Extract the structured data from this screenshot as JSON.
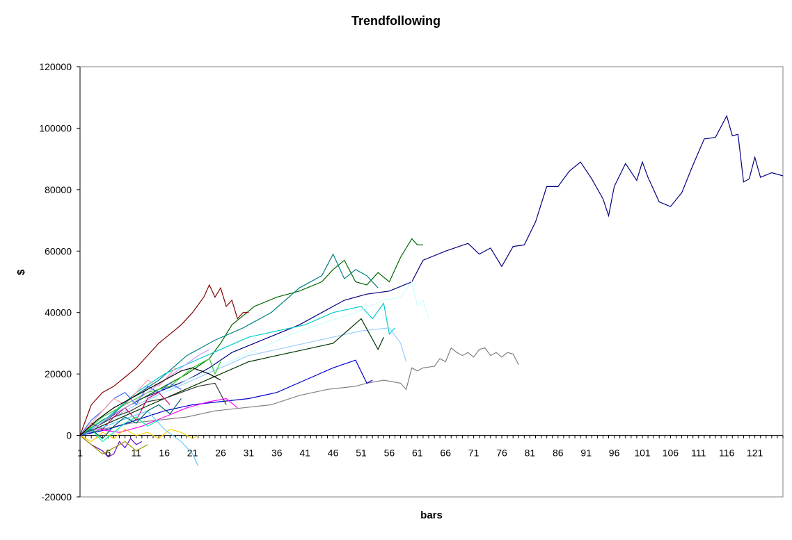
{
  "chart_data": {
    "type": "line",
    "title": "Trendfollowing",
    "xlabel": "bars",
    "ylabel": "$",
    "ylim": [
      -20000,
      120000
    ],
    "xlim": [
      1,
      126
    ],
    "yticks": [
      -20000,
      0,
      20000,
      40000,
      60000,
      80000,
      100000,
      120000
    ],
    "yticklabels": [
      "-20000",
      "0",
      "20000",
      "40000",
      "60000",
      "80000",
      "100000",
      "120000"
    ],
    "xticks": [
      1,
      6,
      11,
      16,
      21,
      26,
      31,
      36,
      41,
      46,
      51,
      56,
      61,
      66,
      71,
      76,
      81,
      86,
      91,
      96,
      101,
      106,
      111,
      116,
      121
    ],
    "xticklabels": [
      "1",
      "6",
      "11",
      "16",
      "21",
      "26",
      "31",
      "36",
      "41",
      "46",
      "51",
      "56",
      "61",
      "66",
      "71",
      "76",
      "81",
      "86",
      "91",
      "96",
      "101",
      "106",
      "111",
      "116",
      "121"
    ],
    "grid": false,
    "legend": "none",
    "series": [
      {
        "color": "#000080",
        "x": [
          1,
          4,
          8,
          12,
          16,
          20,
          24,
          28,
          32,
          36,
          40,
          44,
          48,
          52,
          56,
          60,
          62,
          66,
          70,
          72,
          74,
          76,
          78,
          80,
          82,
          84,
          86,
          88,
          90,
          92,
          94,
          95,
          96,
          98,
          100,
          101,
          102,
          104,
          106,
          108,
          110,
          112,
          114,
          116,
          117,
          118,
          119,
          120,
          121,
          122,
          124,
          126
        ],
        "values": [
          0,
          3000,
          8000,
          12000,
          15000,
          18000,
          22000,
          27000,
          30000,
          33000,
          36000,
          40000,
          44000,
          46000,
          47000,
          50000,
          57000,
          60000,
          62500,
          59000,
          61000,
          55000,
          61500,
          62000,
          69500,
          81000,
          81000,
          86000,
          89000,
          83500,
          77000,
          71500,
          81000,
          88500,
          83000,
          89000,
          84000,
          76000,
          74500,
          79000,
          88000,
          96500,
          97000,
          104000,
          97500,
          98000,
          82500,
          83500,
          90500,
          84000,
          85500,
          84500
        ]
      },
      {
        "color": "#808080",
        "x": [
          1,
          5,
          10,
          15,
          20,
          25,
          30,
          35,
          40,
          45,
          50,
          52,
          55,
          58,
          59,
          60,
          61,
          62,
          64,
          65,
          66,
          67,
          68,
          69,
          70,
          71,
          72,
          73,
          74,
          75,
          76,
          77,
          78,
          79
        ],
        "values": [
          0,
          2000,
          4000,
          5000,
          6000,
          8000,
          9000,
          10000,
          13000,
          15000,
          16000,
          17000,
          18000,
          17000,
          15000,
          22000,
          21000,
          22000,
          22500,
          25000,
          24000,
          28500,
          27000,
          26000,
          27000,
          25500,
          28000,
          28500,
          26000,
          27000,
          25500,
          27000,
          26500,
          23000
        ]
      },
      {
        "color": "#006400",
        "x": [
          1,
          5,
          10,
          15,
          20,
          24,
          26,
          28,
          32,
          36,
          40,
          44,
          46,
          48,
          50,
          52,
          54,
          56,
          58,
          60,
          61,
          62
        ],
        "values": [
          0,
          5000,
          10000,
          15000,
          20000,
          25000,
          30000,
          36000,
          42000,
          45000,
          47000,
          50000,
          54000,
          57000,
          50000,
          49000,
          53000,
          50000,
          58000,
          64000,
          62000,
          62000
        ]
      },
      {
        "color": "#008080",
        "x": [
          1,
          5,
          10,
          15,
          20,
          25,
          30,
          35,
          40,
          44,
          46,
          48,
          50,
          52,
          54
        ],
        "values": [
          0,
          4000,
          12000,
          18000,
          26000,
          31000,
          35000,
          40000,
          48000,
          52000,
          59000,
          51000,
          54000,
          52000,
          48000
        ]
      },
      {
        "color": "#800000",
        "x": [
          1,
          3,
          5,
          7,
          9,
          11,
          13,
          15,
          17,
          19,
          21,
          23,
          24,
          25,
          26,
          27,
          28,
          29,
          30,
          31
        ],
        "values": [
          0,
          10000,
          14000,
          16000,
          19000,
          22000,
          26000,
          30000,
          33000,
          36000,
          40000,
          45000,
          49000,
          45000,
          48000,
          42000,
          44000,
          38000,
          40000,
          40000
        ]
      },
      {
        "color": "#00CCCC",
        "x": [
          1,
          6,
          11,
          16,
          21,
          26,
          31,
          36,
          41,
          46,
          51,
          53,
          55,
          56,
          57
        ],
        "values": [
          0,
          6000,
          14000,
          20000,
          24000,
          28000,
          32000,
          34000,
          36000,
          40000,
          42000,
          38000,
          43000,
          33000,
          35000
        ]
      },
      {
        "color": "#99CCFF",
        "x": [
          1,
          6,
          11,
          16,
          21,
          26,
          31,
          36,
          41,
          46,
          51,
          56,
          58,
          59
        ],
        "values": [
          0,
          5000,
          10000,
          14000,
          18000,
          22000,
          26000,
          28000,
          30000,
          32000,
          34000,
          35000,
          30000,
          24000
        ]
      },
      {
        "color": "#CCFFFF",
        "x": [
          1,
          10,
          20,
          30,
          40,
          50,
          55,
          58,
          60,
          61,
          62,
          63
        ],
        "values": [
          0,
          8000,
          18000,
          26000,
          34000,
          40000,
          44000,
          45000,
          50000,
          42000,
          44000,
          38000
        ]
      },
      {
        "color": "#003300",
        "x": [
          1,
          6,
          11,
          16,
          21,
          26,
          31,
          36,
          41,
          46,
          51,
          54,
          55
        ],
        "values": [
          0,
          4000,
          8000,
          12000,
          16000,
          20000,
          24000,
          26000,
          28000,
          30000,
          38000,
          28000,
          32000
        ]
      },
      {
        "color": "#0000CC",
        "x": [
          1,
          6,
          11,
          16,
          21,
          26,
          31,
          36,
          41,
          46,
          50,
          52,
          53
        ],
        "values": [
          0,
          2000,
          5000,
          8000,
          10000,
          11000,
          12000,
          14000,
          18000,
          22000,
          24500,
          17000,
          18000
        ]
      },
      {
        "color": "#FF00FF",
        "x": [
          1,
          4,
          8,
          12,
          16,
          20,
          24,
          27,
          29
        ],
        "values": [
          0,
          2000,
          1000,
          3000,
          6000,
          9000,
          11000,
          12000,
          9000
        ]
      },
      {
        "color": "#33CC33",
        "x": [
          1,
          5,
          9,
          13,
          17,
          21,
          24,
          25,
          26
        ],
        "values": [
          0,
          6000,
          10000,
          14000,
          16000,
          22000,
          25000,
          20000,
          24000
        ]
      },
      {
        "color": "#FFCC00",
        "x": [
          1,
          3,
          5,
          7,
          9,
          11,
          13,
          15,
          17,
          19,
          21,
          22
        ],
        "values": [
          0,
          -2000,
          1000,
          -1000,
          2000,
          0,
          1000,
          -1000,
          2000,
          1000,
          -1000,
          0
        ]
      },
      {
        "color": "#6600CC",
        "x": [
          1,
          3,
          5,
          6,
          7,
          8,
          9,
          10,
          11,
          12
        ],
        "values": [
          0,
          -3000,
          -5000,
          -7000,
          -6000,
          -2000,
          -4000,
          -1000,
          -3000,
          -2000
        ]
      },
      {
        "color": "#333333",
        "x": [
          1,
          4,
          7,
          10,
          13,
          16,
          19,
          22,
          25,
          27
        ],
        "values": [
          0,
          3000,
          6000,
          8000,
          11000,
          12000,
          14000,
          16000,
          17000,
          10000
        ]
      },
      {
        "color": "#3366FF",
        "x": [
          1,
          3,
          5,
          7,
          9,
          11,
          13,
          15,
          17,
          19
        ],
        "values": [
          0,
          5000,
          8000,
          12000,
          14000,
          10000,
          16000,
          14000,
          17000,
          15000
        ]
      },
      {
        "color": "#CC0066",
        "x": [
          1,
          3,
          5,
          7,
          9,
          11,
          13,
          15,
          17
        ],
        "values": [
          0,
          4000,
          2000,
          6000,
          9000,
          5000,
          12000,
          14000,
          10000
        ]
      },
      {
        "color": "#66CCFF",
        "x": [
          1,
          4,
          7,
          10,
          13,
          16,
          19,
          21,
          22
        ],
        "values": [
          0,
          2000,
          4000,
          6000,
          8000,
          2000,
          -2000,
          -6000,
          -10000
        ]
      },
      {
        "color": "#999900",
        "x": [
          1,
          3,
          5,
          7,
          9,
          11,
          13
        ],
        "values": [
          0,
          -3000,
          -6000,
          -4000,
          -2000,
          -5000,
          -3000
        ]
      },
      {
        "color": "#00FF99",
        "x": [
          1,
          3,
          5,
          7,
          9,
          11,
          13,
          15
        ],
        "values": [
          0,
          2000,
          -2000,
          1000,
          4000,
          6000,
          3000,
          5000
        ]
      },
      {
        "color": "#CC99FF",
        "x": [
          1,
          4,
          7,
          10,
          13,
          16,
          19,
          22,
          24
        ],
        "values": [
          0,
          3000,
          7000,
          10000,
          14000,
          18000,
          22000,
          26000,
          28000
        ]
      },
      {
        "color": "#FF9999",
        "x": [
          1,
          3,
          5,
          7,
          9,
          11,
          13,
          15,
          18
        ],
        "values": [
          0,
          4000,
          8000,
          12000,
          10000,
          14000,
          18000,
          16000,
          22000
        ]
      },
      {
        "color": "#006666",
        "x": [
          1,
          3,
          5,
          7,
          9,
          11,
          13,
          15,
          17,
          19
        ],
        "values": [
          0,
          2000,
          -1000,
          3000,
          6000,
          4000,
          8000,
          10000,
          7000,
          12000
        ]
      },
      {
        "color": "#000000",
        "x": [
          1,
          4,
          7,
          10,
          13,
          16,
          19,
          21,
          24,
          26
        ],
        "values": [
          0,
          5000,
          9000,
          12000,
          15000,
          18000,
          21000,
          22000,
          20000,
          18000
        ]
      }
    ]
  }
}
